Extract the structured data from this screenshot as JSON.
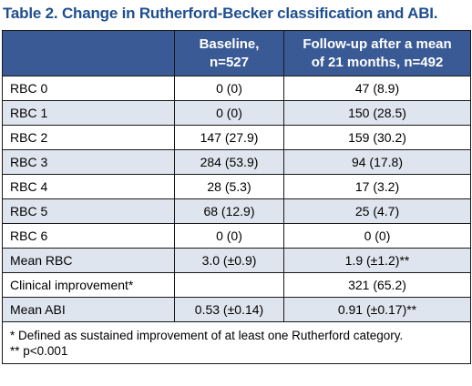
{
  "title": "Table 2. Change in Rutherford-Becker classification and ABI.",
  "header": {
    "col1": "",
    "col2_line1": "Baseline,",
    "col2_line2": "n=527",
    "col3_line1": "Follow-up after a mean",
    "col3_line2": "of 21 months, n=492"
  },
  "rows": [
    {
      "label": "RBC 0",
      "baseline": "0 (0)",
      "followup": "47 (8.9)"
    },
    {
      "label": "RBC 1",
      "baseline": "0 (0)",
      "followup": "150 (28.5)"
    },
    {
      "label": "RBC 2",
      "baseline": "147 (27.9)",
      "followup": "159 (30.2)"
    },
    {
      "label": "RBC 3",
      "baseline": "284 (53.9)",
      "followup": "94 (17.8)"
    },
    {
      "label": "RBC 4",
      "baseline": "28 (5.3)",
      "followup": "17 (3.2)"
    },
    {
      "label": "RBC 5",
      "baseline": "68 (12.9)",
      "followup": "25 (4.7)"
    },
    {
      "label": "RBC 6",
      "baseline": "0 (0)",
      "followup": "0 (0)"
    },
    {
      "label": "Mean RBC",
      "baseline": "3.0 (±0.9)",
      "followup": "1.9 (±1.2)**"
    },
    {
      "label": "Clinical improvement*",
      "baseline": "",
      "followup": "321 (65.2)"
    },
    {
      "label": "Mean ABI",
      "baseline": "0.53 (±0.14)",
      "followup": "0.91 (±0.17)**"
    }
  ],
  "footnotes": [
    "* Defined as sustained improvement of at least one Rutherford category.",
    "** p<0.001"
  ],
  "colors": {
    "title": "#1f4f8f",
    "header_bg": "#3a5a96",
    "stripe_bg": "#dfe5ef"
  }
}
